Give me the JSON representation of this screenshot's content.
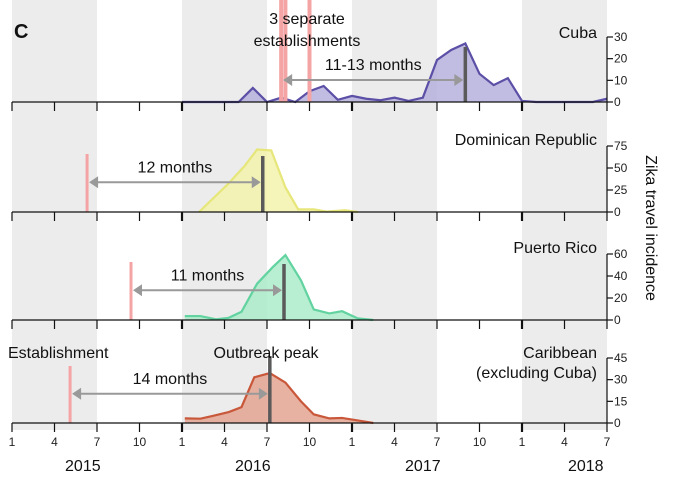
{
  "panel_letter": "C",
  "y_axis_title": "Zika travel incidence",
  "annotations": {
    "establishment": "Establishment",
    "outbreak_peak": "Outbreak peak",
    "cuba_establishments_line1": "3 separate",
    "cuba_establishments_line2": "establishments"
  },
  "x_axis": {
    "month_ticks": [
      "1",
      "4",
      "7",
      "10",
      "1",
      "4",
      "7",
      "10",
      "1",
      "4",
      "7",
      "10",
      "1",
      "4",
      "7"
    ],
    "year_labels": [
      "2015",
      "2016",
      "2017",
      "2018"
    ],
    "range": [
      "2015-01",
      "2018-07"
    ],
    "shaded_bands": [
      [
        "2015-01",
        "2015-07"
      ],
      [
        "2016-01",
        "2016-07"
      ],
      [
        "2017-01",
        "2017-07"
      ],
      [
        "2018-01",
        "2018-07"
      ]
    ]
  },
  "colors": {
    "establishment": "#f4a4a4",
    "peak": "#5a5a5a",
    "arrow": "#999999",
    "band": "#ececec"
  },
  "chart_data": [
    {
      "type": "area",
      "name": "Cuba",
      "ylim": [
        0,
        30
      ],
      "yticks": [
        0,
        10,
        20,
        30
      ],
      "line_color": "#5b4fa6",
      "fill_color": "#b6b0dd",
      "x_unit": "months since Jan 2015",
      "x": [
        12,
        16,
        17,
        18,
        19,
        20,
        21,
        22,
        23,
        24,
        25,
        26,
        27,
        28,
        29,
        30,
        31,
        32,
        33,
        34,
        35,
        36,
        37,
        38,
        39,
        40,
        41,
        42
      ],
      "y": [
        0,
        0,
        6.5,
        0,
        2,
        0,
        5,
        7.4,
        1,
        2.8,
        1.5,
        0.8,
        2,
        0.5,
        2,
        19.4,
        24,
        27,
        13,
        7.8,
        11,
        0.5,
        0,
        0,
        0,
        0,
        0,
        1.5
      ],
      "establishments": [
        19,
        19.3,
        21
      ],
      "peak": 32,
      "interval_label": "11-13 months"
    },
    {
      "type": "area",
      "name": "Dominican Republic",
      "ylim": [
        0,
        75
      ],
      "yticks": [
        0,
        25,
        50,
        75
      ],
      "line_color": "#e6e67a",
      "fill_color": "#f3f3ad",
      "x_unit": "months since Jan 2015",
      "x": [
        13.2,
        15.2,
        16.4,
        17.3,
        18.3,
        19.3,
        20.2,
        21.3,
        22.2,
        23.5,
        24.4
      ],
      "y": [
        0,
        31,
        52,
        71,
        70,
        28,
        3,
        3,
        0.5,
        2,
        0
      ],
      "establishments": [
        5.3
      ],
      "peak": 17.7,
      "interval_label": "12 months"
    },
    {
      "type": "area",
      "name": "Puerto Rico",
      "ylim": [
        0,
        60
      ],
      "yticks": [
        0,
        20,
        40,
        60
      ],
      "line_color": "#62d3a0",
      "fill_color": "#acebc9",
      "x_unit": "months since Jan 2015",
      "x": [
        12.2,
        13.3,
        14.4,
        15.3,
        16.2,
        17.3,
        18.4,
        19.3,
        20.4,
        21.3,
        22.4,
        23.3,
        24.4,
        25.5
      ],
      "y": [
        3.6,
        3.6,
        0.6,
        2,
        7.5,
        33,
        48,
        59,
        36,
        9.6,
        6,
        8,
        1.5,
        0
      ],
      "establishments": [
        8.4
      ],
      "peak": 19.2,
      "interval_label": "11 months"
    },
    {
      "type": "area",
      "name": "Caribbean",
      "subtitle": "(excluding Cuba)",
      "ylim": [
        0,
        45
      ],
      "yticks": [
        0,
        15,
        30,
        45
      ],
      "line_color": "#c9573a",
      "fill_color": "#e3a592",
      "x_unit": "months since Jan 2015",
      "x": [
        12.2,
        13.3,
        14.2,
        15.3,
        16.2,
        17.1,
        18.2,
        19.3,
        20.4,
        21.3,
        22.4,
        23.3,
        24.4,
        25.5
      ],
      "y": [
        3.2,
        3,
        5,
        7.6,
        11,
        31.6,
        34.6,
        28,
        15,
        6,
        3.2,
        3.5,
        1.8,
        0
      ],
      "establishments": [
        4.1
      ],
      "peak": 18.2,
      "interval_label": "14 months"
    }
  ]
}
